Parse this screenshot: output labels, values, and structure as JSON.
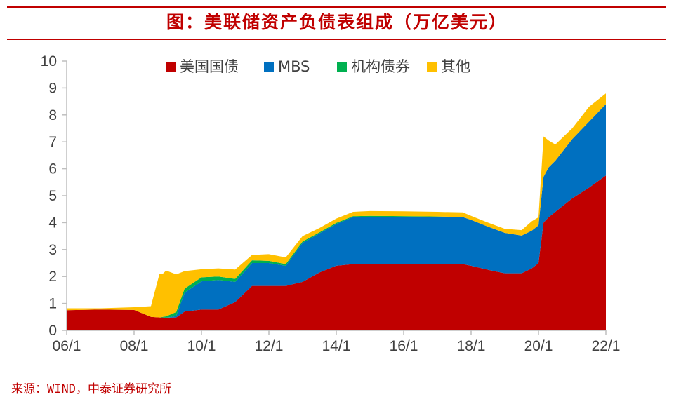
{
  "title": "图：美联储资产负债表组成（万亿美元）",
  "source": "来源：WIND，中泰证券研究所",
  "colors": {
    "brand": "#c00000",
    "axis": "#bfbfbf",
    "text": "#404040"
  },
  "chart_data": {
    "type": "area",
    "stacked": true,
    "legend_position": "top",
    "grid": false,
    "xlabel": "",
    "ylabel": "",
    "ylim": [
      0,
      10
    ],
    "yticks": [
      0,
      1,
      2,
      3,
      4,
      5,
      6,
      7,
      8,
      9,
      10
    ],
    "xlim": [
      2006.0,
      2022.0
    ],
    "xtick_labels": [
      "06/1",
      "08/1",
      "10/1",
      "12/1",
      "14/1",
      "16/1",
      "18/1",
      "20/1",
      "22/1"
    ],
    "x": [
      2006.0,
      2007.0,
      2008.0,
      2008.5,
      2008.75,
      2008.85,
      2008.95,
      2009.25,
      2009.5,
      2010.0,
      2010.5,
      2011.0,
      2011.5,
      2012.0,
      2012.5,
      2013.0,
      2013.5,
      2014.0,
      2014.5,
      2015.0,
      2016.0,
      2017.0,
      2017.75,
      2018.0,
      2018.5,
      2019.0,
      2019.5,
      2019.8,
      2020.0,
      2020.15,
      2020.3,
      2020.5,
      2021.0,
      2021.5,
      2022.0
    ],
    "series": [
      {
        "name": "美国国债",
        "color": "#c00000",
        "values": [
          0.75,
          0.77,
          0.76,
          0.5,
          0.48,
          0.48,
          0.47,
          0.48,
          0.7,
          0.77,
          0.77,
          1.05,
          1.65,
          1.65,
          1.65,
          1.8,
          2.15,
          2.4,
          2.46,
          2.46,
          2.46,
          2.46,
          2.46,
          2.4,
          2.25,
          2.12,
          2.12,
          2.3,
          2.5,
          4.0,
          4.2,
          4.4,
          4.9,
          5.3,
          5.75
        ]
      },
      {
        "name": "MBS",
        "color": "#0070c0",
        "values": [
          0,
          0,
          0,
          0,
          0,
          0,
          0,
          0.05,
          0.7,
          1.05,
          1.1,
          0.75,
          0.85,
          0.85,
          0.75,
          1.45,
          1.45,
          1.55,
          1.75,
          1.76,
          1.76,
          1.76,
          1.75,
          1.7,
          1.6,
          1.5,
          1.4,
          1.4,
          1.4,
          1.7,
          1.85,
          1.9,
          2.2,
          2.45,
          2.65
        ]
      },
      {
        "name": "机构债券",
        "color": "#00b050",
        "values": [
          0,
          0,
          0,
          0,
          0,
          0.02,
          0.05,
          0.15,
          0.15,
          0.15,
          0.13,
          0.11,
          0.1,
          0.08,
          0.06,
          0.05,
          0.04,
          0.04,
          0.03,
          0.03,
          0.02,
          0.01,
          0.0,
          0.0,
          0.0,
          0.0,
          0.0,
          0.0,
          0.0,
          0.0,
          0.0,
          0.0,
          0.0,
          0.0,
          0.0
        ]
      },
      {
        "name": "其他",
        "color": "#ffc000",
        "values": [
          0.07,
          0.05,
          0.1,
          0.4,
          1.6,
          1.6,
          1.7,
          1.4,
          0.65,
          0.3,
          0.3,
          0.35,
          0.2,
          0.25,
          0.25,
          0.2,
          0.16,
          0.16,
          0.16,
          0.18,
          0.18,
          0.17,
          0.17,
          0.15,
          0.15,
          0.15,
          0.2,
          0.35,
          0.3,
          1.5,
          1.0,
          0.6,
          0.4,
          0.55,
          0.4
        ]
      }
    ]
  }
}
